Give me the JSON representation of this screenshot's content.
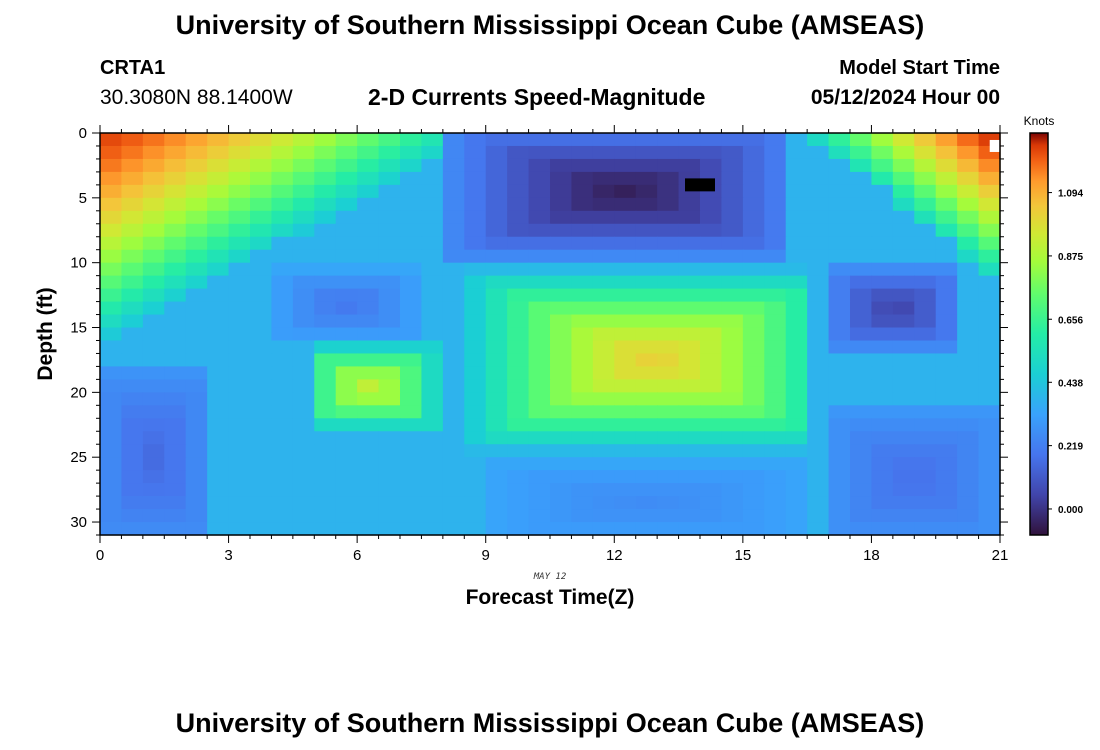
{
  "header": {
    "title": "University of Southern Mississippi Ocean Cube (AMSEAS)",
    "station_id": "CRTA1",
    "coords": "30.3080N  88.1400W",
    "subtitle": "2-D Currents Speed-Magnitude",
    "model_start_label": "Model Start Time",
    "model_start_value": "05/12/2024 Hour 00"
  },
  "footer": {
    "title": "University of Southern Mississippi Ocean Cube (AMSEAS)"
  },
  "chart_data": {
    "type": "heatmap",
    "title": "2-D Currents Speed-Magnitude",
    "xlabel": "Forecast Time(Z)",
    "ylabel": "Depth (ft)",
    "x_annotation": "MAY 12",
    "xlim": [
      0,
      21
    ],
    "ylim": [
      31,
      0
    ],
    "x_ticks": [
      0,
      3,
      6,
      9,
      12,
      15,
      18,
      21
    ],
    "x_tick_labels": [
      "0",
      "3",
      "6",
      "9",
      "12",
      "15",
      "18",
      "21"
    ],
    "y_ticks": [
      0,
      5,
      10,
      15,
      20,
      25,
      30
    ],
    "y_tick_labels": [
      "0",
      "5",
      "10",
      "15",
      "20",
      "25",
      "30"
    ],
    "colorbar": {
      "label": "Knots",
      "range": [
        -0.09,
        1.3
      ],
      "ticks": [
        0.0,
        0.219,
        0.438,
        0.656,
        0.875,
        1.094
      ],
      "tick_labels": [
        "0.000",
        "0.219",
        "0.438",
        "0.656",
        "0.875",
        "1.094"
      ]
    },
    "grid": {
      "x_cells": 42,
      "y_cells": 31,
      "x_step_hours": 0.5,
      "y_step_ft": 1.0
    },
    "features": [
      {
        "shape": "corner",
        "corner": "top-left",
        "t": [
          0,
          9
        ],
        "d": [
          0,
          16
        ],
        "peak": 1.25,
        "edge": 0.45
      },
      {
        "shape": "corner",
        "corner": "top-right",
        "t": [
          16.5,
          21
        ],
        "d": [
          0,
          11.5
        ],
        "peak": 1.28,
        "edge": 0.5
      },
      {
        "shape": "box",
        "t": [
          8.2,
          16.2
        ],
        "d": [
          -0.5,
          9.5
        ],
        "peak": -0.05,
        "edge": 0.25
      },
      {
        "shape": "box",
        "t": [
          8.4,
          16.4
        ],
        "d": [
          10.5,
          24.5
        ],
        "peak": 1.02,
        "edge": 0.4,
        "center": [
          12.9,
          17.5
        ]
      },
      {
        "shape": "box",
        "t": [
          4.8,
          8.0
        ],
        "d": [
          16.2,
          23.0
        ],
        "peak": 0.92,
        "edge": 0.42,
        "center": [
          6.3,
          19.6
        ]
      },
      {
        "shape": "box",
        "t": [
          16.9,
          20.2
        ],
        "d": [
          10.3,
          16.8
        ],
        "peak": 0.05,
        "edge": 0.28
      },
      {
        "shape": "box",
        "t": [
          4.0,
          7.5
        ],
        "d": [
          10.5,
          16.0
        ],
        "peak": 0.2,
        "edge": 0.34
      },
      {
        "shape": "box",
        "t": [
          0,
          2.5
        ],
        "d": [
          18.5,
          31.5
        ],
        "peak": 0.16,
        "edge": 0.28
      },
      {
        "shape": "box",
        "t": [
          17,
          21
        ],
        "d": [
          21.5,
          31.5
        ],
        "peak": 0.18,
        "edge": 0.29
      },
      {
        "shape": "box",
        "t": [
          9,
          16.5
        ],
        "d": [
          25.5,
          31.5
        ],
        "peak": 0.26,
        "edge": 0.34
      }
    ],
    "background_value": 0.38,
    "markers": [
      {
        "type": "black-rect",
        "t": 14.0,
        "d": 4.0,
        "value": -0.09
      },
      {
        "type": "white-square",
        "t": 20.9,
        "d": 1.0
      }
    ]
  }
}
